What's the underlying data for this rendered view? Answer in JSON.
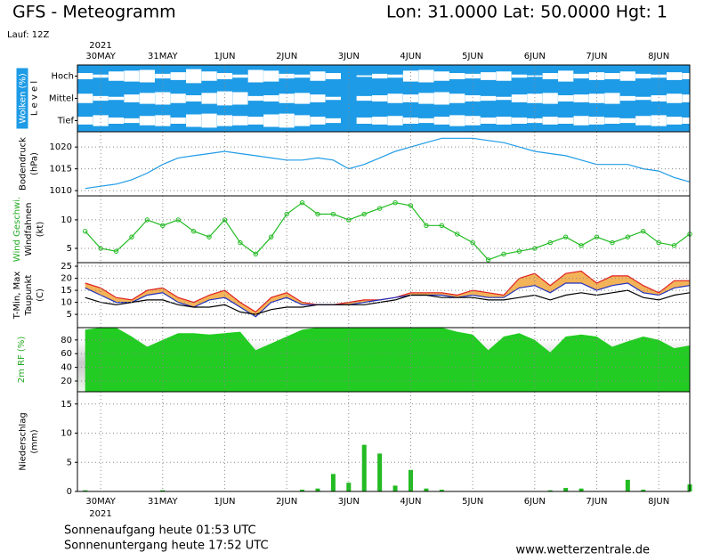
{
  "header": {
    "title": "GFS - Meteogramm",
    "coords": "Lon: 31.0000 Lat: 50.0000 Hgt: 1",
    "run": "Lauf: 12Z",
    "year": "2021"
  },
  "footer": {
    "sunrise": "Sonnenaufgang heute 01:53 UTC",
    "sunset": "Sonnenuntergang heute 17:52 UTC",
    "source": "www.wetterzentrale.de"
  },
  "time_axis": {
    "xlim": [
      -9,
      228
    ],
    "xticks": [
      {
        "value": 0,
        "label": "30MAY"
      },
      {
        "value": 24,
        "label": "31MAY"
      },
      {
        "value": 48,
        "label": "1JUN"
      },
      {
        "value": 72,
        "label": "2JUN"
      },
      {
        "value": 96,
        "label": "3JUN"
      },
      {
        "value": 120,
        "label": "4JUN"
      },
      {
        "value": 144,
        "label": "5JUN"
      },
      {
        "value": 168,
        "label": "6JUN"
      },
      {
        "value": 192,
        "label": "7JUN"
      },
      {
        "value": 216,
        "label": "8JUN"
      }
    ],
    "x": [
      -6,
      0,
      6,
      12,
      18,
      24,
      30,
      36,
      42,
      48,
      54,
      60,
      66,
      72,
      78,
      84,
      90,
      96,
      102,
      108,
      114,
      120,
      126,
      132,
      138,
      144,
      150,
      156,
      162,
      168,
      174,
      180,
      186,
      192,
      198,
      204,
      210,
      216,
      222,
      228
    ]
  },
  "chart_data": [
    {
      "type": "clouds",
      "ylabel": [
        "Wolken (%)",
        "L e v e l"
      ],
      "levels": [
        "Hoch",
        "Mittel",
        "Tief"
      ],
      "series": [
        {
          "name": "Hoch",
          "values": [
            40,
            20,
            60,
            70,
            80,
            30,
            50,
            90,
            60,
            40,
            20,
            80,
            70,
            30,
            20,
            60,
            40,
            0,
            10,
            30,
            20,
            70,
            80,
            60,
            40,
            30,
            50,
            60,
            20,
            10,
            40,
            70,
            30,
            50,
            40,
            60,
            30,
            20,
            50,
            40
          ]
        },
        {
          "name": "Mittel",
          "values": [
            60,
            30,
            20,
            50,
            70,
            80,
            60,
            40,
            70,
            90,
            80,
            30,
            40,
            60,
            70,
            50,
            20,
            0,
            30,
            40,
            60,
            50,
            70,
            80,
            60,
            40,
            30,
            20,
            50,
            60,
            70,
            40,
            50,
            60,
            70,
            30,
            20,
            40,
            60,
            50
          ]
        },
        {
          "name": "Tief",
          "values": [
            50,
            70,
            40,
            30,
            60,
            70,
            40,
            80,
            90,
            70,
            60,
            50,
            80,
            90,
            70,
            50,
            30,
            0,
            40,
            50,
            60,
            40,
            30,
            50,
            70,
            60,
            40,
            50,
            40,
            30,
            50,
            40,
            60,
            50,
            40,
            30,
            60,
            70,
            50,
            40
          ]
        }
      ]
    },
    {
      "type": "line",
      "ylabel": [
        "Bodendruck",
        "(hPa)"
      ],
      "ylim": [
        1008.8,
        1023.5
      ],
      "yticks": [
        1010,
        1015,
        1020
      ],
      "series": [
        {
          "color": "#1e9be6",
          "values": [
            1010.5,
            1011,
            1011.5,
            1012.5,
            1014,
            1016,
            1017.5,
            1018,
            1018.5,
            1019,
            1018.5,
            1018,
            1017.5,
            1017,
            1017,
            1017.5,
            1017,
            1015,
            1016,
            1017.5,
            1019,
            1020,
            1021,
            1022,
            1022,
            1022,
            1021.5,
            1021,
            1020,
            1019,
            1018.5,
            1018,
            1017,
            1016,
            1016,
            1016,
            1015,
            1014.5,
            1013,
            1012
          ]
        }
      ]
    },
    {
      "type": "line",
      "ylabel": [
        "Wind Geschwi.",
        "Windfahnen",
        "(kt)"
      ],
      "ylim": [
        2.5,
        14.2
      ],
      "yticks": [
        5,
        10
      ],
      "markers": true,
      "series": [
        {
          "color": "#22bb22",
          "values": [
            8,
            5,
            4.5,
            7,
            10,
            9,
            10,
            8,
            7,
            10,
            6,
            4,
            7,
            11,
            13,
            11,
            11,
            10,
            11,
            12,
            13,
            12.5,
            9,
            9,
            7.5,
            6,
            3,
            4,
            4.5,
            5,
            6,
            7,
            5.5,
            7,
            6,
            7,
            8,
            6,
            5.5,
            7.5
          ]
        }
      ]
    },
    {
      "type": "band",
      "ylabel": [
        "T-Min, Max",
        "Taupunkt",
        "(C)"
      ],
      "ylim": [
        -0.5,
        26.5
      ],
      "yticks": [
        5,
        10,
        15,
        20,
        25
      ],
      "fill": "#f0a030",
      "series": [
        {
          "name": "T-Max",
          "color": "#e02020",
          "values": [
            18,
            16,
            12,
            11,
            15,
            16,
            12,
            10,
            13,
            15,
            10,
            6,
            12,
            14,
            10,
            9,
            9,
            10,
            11,
            11,
            12,
            14,
            14,
            14,
            13,
            15,
            14,
            13,
            20,
            22,
            17,
            22,
            23,
            18,
            21,
            21,
            17,
            14,
            19,
            19
          ]
        },
        {
          "name": "T-Min",
          "color": "#2030c0",
          "values": [
            16,
            13,
            10,
            10,
            13,
            14,
            10,
            8,
            11,
            12,
            8,
            4,
            10,
            12,
            9,
            9,
            9,
            9,
            10,
            11,
            12,
            13,
            13,
            13,
            12,
            13,
            12,
            12,
            16,
            17,
            14,
            18,
            18,
            15,
            17,
            18,
            14,
            13,
            16,
            17
          ]
        },
        {
          "name": "Taupunkt",
          "color": "#000000",
          "values": [
            12,
            10,
            9,
            10,
            11,
            11,
            9,
            8,
            8,
            9,
            6,
            5,
            7,
            8,
            8,
            9,
            9,
            9,
            9,
            10,
            11,
            13,
            13,
            12,
            12,
            12,
            11,
            11,
            12,
            13,
            11,
            13,
            14,
            13,
            14,
            15,
            12,
            11,
            13,
            14
          ]
        }
      ]
    },
    {
      "type": "area",
      "ylabel": [
        "2m RF (%)"
      ],
      "ylim": [
        4.4,
        98
      ],
      "yticks": [
        20,
        40,
        60,
        80
      ],
      "series": [
        {
          "color": "#22cc22",
          "values": [
            95,
            98,
            98,
            85,
            70,
            80,
            90,
            90,
            88,
            90,
            92,
            65,
            75,
            85,
            95,
            98,
            98,
            98,
            98,
            98,
            98,
            98,
            98,
            98,
            92,
            88,
            65,
            85,
            90,
            80,
            62,
            85,
            88,
            85,
            70,
            78,
            85,
            80,
            68,
            72
          ]
        }
      ]
    },
    {
      "type": "bar",
      "ylabel": [
        "Niederschlag",
        "(mm)"
      ],
      "ylim": [
        0,
        17.1
      ],
      "yticks": [
        0,
        5,
        10,
        15
      ],
      "series": [
        {
          "color": "#22bb22",
          "values": [
            0.2,
            0,
            0,
            0,
            0,
            0.2,
            0,
            0,
            0,
            0,
            0,
            0,
            0,
            0,
            0.3,
            0.5,
            3,
            1.5,
            8,
            6.5,
            1,
            3.7,
            0.5,
            0.3,
            0,
            0,
            0,
            0,
            0,
            0,
            0.2,
            0.6,
            0.5,
            0,
            0,
            2,
            0.3,
            0,
            0,
            1.2
          ]
        }
      ]
    }
  ]
}
